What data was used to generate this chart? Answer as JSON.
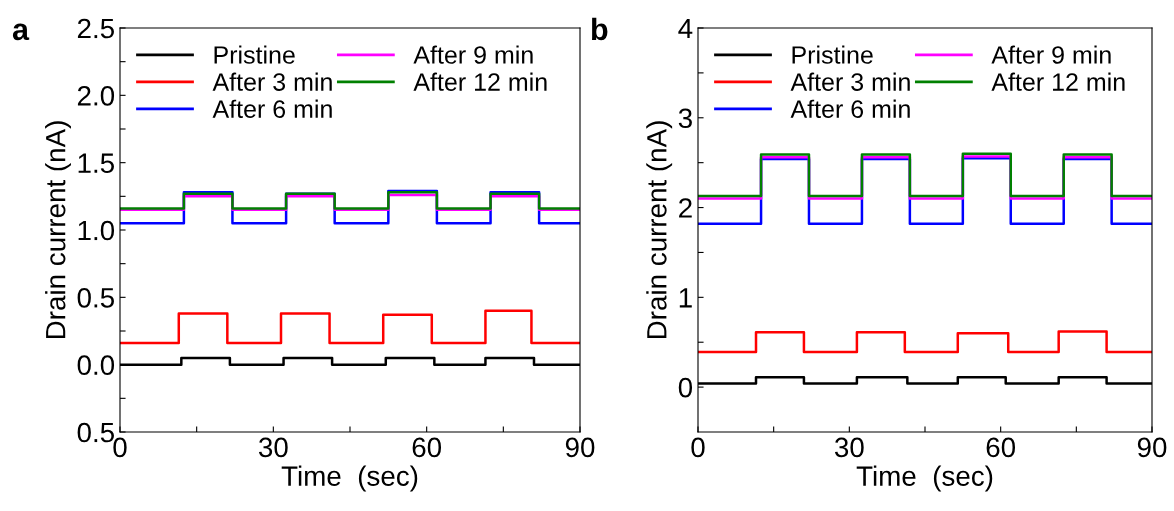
{
  "chart_data": [
    {
      "type": "step",
      "title": "a",
      "xlabel": "Time  (sec)",
      "ylabel": "Drain current (nA)",
      "xlim": [
        0,
        90
      ],
      "ylim": [
        -0.5,
        2.5
      ],
      "xticks": [
        0,
        {
          "value": 15,
          "label": null
        },
        30,
        {
          "value": 45,
          "label": null
        },
        60,
        {
          "value": 75,
          "label": null
        },
        90
      ],
      "yticks": [
        {
          "value": -0.5,
          "label": "0.5"
        },
        {
          "value": -0.25,
          "label": null
        },
        {
          "value": 0,
          "label": "0.0"
        },
        {
          "value": 0.25,
          "label": null
        },
        0.5,
        {
          "value": 0.75,
          "label": null
        },
        {
          "value": 1,
          "label": "1.0"
        },
        {
          "value": 1.25,
          "label": null
        },
        1.5,
        {
          "value": 1.75,
          "label": null
        },
        {
          "value": 2,
          "label": "2.0"
        },
        {
          "value": 2.25,
          "label": null
        },
        2.5
      ],
      "legend": "top left",
      "grid": false,
      "line_style": "solid",
      "marker": "none",
      "series": [
        {
          "name": "Pristine",
          "color": "#000000",
          "x": [
            0,
            12,
            21.5,
            32,
            41.5,
            52,
            61.5,
            71.5,
            81,
            90
          ],
          "values": [
            0.0,
            0.05,
            0.0,
            0.05,
            0.0,
            0.05,
            0.0,
            0.05,
            0.0,
            0.0
          ]
        },
        {
          "name": "After 3 min",
          "color": "#ff0000",
          "x": [
            0,
            11.5,
            21,
            31.5,
            41,
            51.5,
            61,
            71.5,
            80.5,
            90
          ],
          "values": [
            0.16,
            0.38,
            0.16,
            0.38,
            0.16,
            0.37,
            0.16,
            0.4,
            0.16,
            0.16
          ]
        },
        {
          "name": "After 6 min",
          "color": "#0000ff",
          "x": [
            0,
            12.5,
            22,
            32.5,
            42,
            52.5,
            62,
            72.5,
            82,
            90
          ],
          "values": [
            1.05,
            1.28,
            1.05,
            1.27,
            1.05,
            1.29,
            1.05,
            1.28,
            1.05,
            1.05
          ]
        },
        {
          "name": "After 9 min",
          "color": "#ff00ff",
          "x": [
            0,
            12.5,
            22,
            32.5,
            42,
            52.5,
            62,
            72.5,
            82,
            90
          ],
          "values": [
            1.15,
            1.25,
            1.15,
            1.25,
            1.15,
            1.26,
            1.15,
            1.25,
            1.15,
            1.15
          ]
        },
        {
          "name": "After 12 min",
          "color": "#008000",
          "x": [
            0,
            12.5,
            22,
            32.5,
            42,
            52.5,
            62,
            72.5,
            82,
            90
          ],
          "values": [
            1.16,
            1.27,
            1.16,
            1.27,
            1.16,
            1.28,
            1.16,
            1.27,
            1.16,
            1.16
          ]
        }
      ]
    },
    {
      "type": "step",
      "title": "b",
      "xlabel": "Time  (sec)",
      "ylabel": "Drain current (nA)",
      "xlim": [
        0,
        90
      ],
      "ylim": [
        -0.5,
        4
      ],
      "xticks": [
        0,
        {
          "value": 15,
          "label": null
        },
        30,
        {
          "value": 45,
          "label": null
        },
        60,
        {
          "value": 75,
          "label": null
        },
        90
      ],
      "yticks": [
        0,
        {
          "value": 0.5,
          "label": null
        },
        1,
        {
          "value": 1.5,
          "label": null
        },
        2,
        {
          "value": 2.5,
          "label": null
        },
        3,
        {
          "value": 3.5,
          "label": null
        },
        4
      ],
      "legend": "top left",
      "grid": false,
      "line_style": "solid",
      "marker": "none",
      "series": [
        {
          "name": "Pristine",
          "color": "#000000",
          "x": [
            0,
            11.5,
            21,
            31.5,
            41.5,
            51.5,
            61,
            71.5,
            81,
            90
          ],
          "values": [
            0.04,
            0.11,
            0.04,
            0.11,
            0.04,
            0.11,
            0.04,
            0.11,
            0.04,
            0.04
          ]
        },
        {
          "name": "After 3 min",
          "color": "#ff0000",
          "x": [
            0,
            11.5,
            21,
            31.5,
            41,
            51.5,
            61.5,
            71.5,
            81,
            90
          ],
          "values": [
            0.39,
            0.61,
            0.39,
            0.61,
            0.39,
            0.6,
            0.39,
            0.62,
            0.39,
            0.39
          ]
        },
        {
          "name": "After 6 min",
          "color": "#0000ff",
          "x": [
            0,
            12.5,
            22,
            32.5,
            42,
            52.5,
            62,
            72.5,
            82,
            90
          ],
          "values": [
            1.82,
            2.54,
            1.82,
            2.54,
            1.82,
            2.55,
            1.82,
            2.54,
            1.82,
            1.82
          ]
        },
        {
          "name": "After 9 min",
          "color": "#ff00ff",
          "x": [
            0,
            12.5,
            22,
            32.5,
            42,
            52.5,
            62,
            72.5,
            82,
            90
          ],
          "values": [
            2.1,
            2.56,
            2.1,
            2.56,
            2.1,
            2.57,
            2.1,
            2.56,
            2.1,
            2.1
          ]
        },
        {
          "name": "After 12 min",
          "color": "#008000",
          "x": [
            0,
            12.5,
            22,
            32.5,
            42,
            52.5,
            62,
            72.5,
            82,
            90
          ],
          "values": [
            2.13,
            2.59,
            2.13,
            2.59,
            2.13,
            2.6,
            2.13,
            2.59,
            2.13,
            2.13
          ]
        }
      ]
    }
  ]
}
